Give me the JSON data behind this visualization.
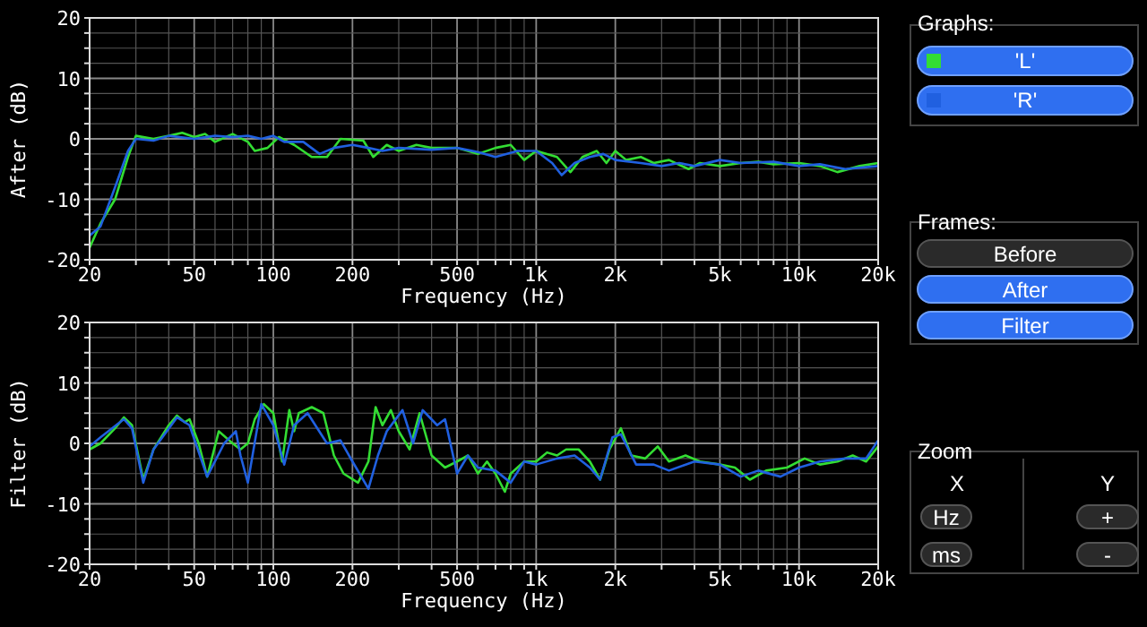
{
  "chart_data": [
    {
      "type": "line",
      "ylabel": "After (dB)",
      "xlabel": "Frequency (Hz)",
      "log": "x",
      "grid": true,
      "legend": "right",
      "legend_title": "Graphs:",
      "xlim": [
        20,
        20000
      ],
      "ylim": [
        -20,
        20
      ],
      "xticks": [
        20,
        {
          "value": 30,
          "label": null
        },
        {
          "value": 40,
          "label": null
        },
        50,
        {
          "value": 60,
          "label": null
        },
        {
          "value": 70,
          "label": null
        },
        {
          "value": 80,
          "label": null
        },
        {
          "value": 90,
          "label": null
        },
        100,
        200,
        {
          "value": 300,
          "label": null
        },
        {
          "value": 400,
          "label": null
        },
        500,
        {
          "value": 600,
          "label": null
        },
        {
          "value": 700,
          "label": null
        },
        {
          "value": 800,
          "label": null
        },
        {
          "value": 900,
          "label": null
        },
        {
          "value": 1000,
          "label": "1k"
        },
        {
          "value": 2000,
          "label": "2k"
        },
        {
          "value": 3000,
          "label": null
        },
        {
          "value": 4000,
          "label": null
        },
        {
          "value": 5000,
          "label": "5k"
        },
        {
          "value": 6000,
          "label": null
        },
        {
          "value": 7000,
          "label": null
        },
        {
          "value": 8000,
          "label": null
        },
        {
          "value": 9000,
          "label": null
        },
        {
          "value": 10000,
          "label": "10k"
        },
        {
          "value": 20000,
          "label": "20k"
        }
      ],
      "yticks": [
        -20,
        {
          "value": -17.5,
          "label": null
        },
        {
          "value": -15,
          "label": null
        },
        {
          "value": -12.5,
          "label": null
        },
        -10,
        {
          "value": -7.5,
          "label": null
        },
        {
          "value": -5,
          "label": null
        },
        {
          "value": -2.5,
          "label": null
        },
        0,
        {
          "value": 2.5,
          "label": null
        },
        {
          "value": 5,
          "label": null
        },
        {
          "value": 7.5,
          "label": null
        },
        10,
        {
          "value": 12.5,
          "label": null
        },
        {
          "value": 15,
          "label": null
        },
        {
          "value": 17.5,
          "label": null
        },
        20
      ],
      "series": [
        {
          "name": "'L'",
          "color": "#33dd33",
          "x": [
            20,
            22,
            25,
            28,
            30,
            35,
            40,
            45,
            50,
            55,
            60,
            70,
            80,
            85,
            95,
            105,
            120,
            140,
            160,
            180,
            220,
            240,
            270,
            300,
            350,
            400,
            500,
            600,
            700,
            800,
            900,
            1000,
            1200,
            1350,
            1500,
            1700,
            1850,
            2000,
            2200,
            2500,
            2800,
            3200,
            3800,
            4200,
            5000,
            6000,
            7000,
            8000,
            10000,
            12000,
            14000,
            17000,
            20000
          ],
          "values": [
            -18,
            -14,
            -10,
            -3,
            0.5,
            0,
            0.5,
            1,
            0.3,
            0.8,
            -0.5,
            0.8,
            -0.5,
            -2,
            -1.5,
            0.3,
            -1,
            -3,
            -3,
            0,
            -0.3,
            -3,
            -1,
            -2,
            -1,
            -1.5,
            -1.5,
            -2.5,
            -1.5,
            -1,
            -3.5,
            -2,
            -3,
            -5.5,
            -3,
            -2,
            -4,
            -2,
            -3.5,
            -3,
            -4,
            -3.5,
            -5,
            -4,
            -4.5,
            -4,
            -3.8,
            -4.2,
            -4,
            -4.5,
            -5.5,
            -4.5,
            -4
          ]
        },
        {
          "name": "'R'",
          "color": "#2060e0",
          "x": [
            20,
            22,
            25,
            28,
            30,
            35,
            40,
            50,
            60,
            70,
            80,
            90,
            100,
            110,
            130,
            150,
            170,
            200,
            230,
            260,
            300,
            400,
            500,
            600,
            700,
            850,
            1000,
            1150,
            1250,
            1400,
            1600,
            1800,
            2000,
            2500,
            3000,
            3500,
            4000,
            5000,
            6000,
            8000,
            10000,
            12000,
            15000,
            20000
          ],
          "values": [
            -16,
            -14.5,
            -8,
            -2,
            0,
            -0.3,
            0.5,
            0,
            0.5,
            0.3,
            0.5,
            0,
            0.5,
            -0.5,
            -0.5,
            -2.5,
            -1.5,
            -1,
            -1.5,
            -2,
            -1.5,
            -1.8,
            -1.5,
            -2.2,
            -3,
            -2,
            -2,
            -4,
            -6,
            -4,
            -3,
            -2.5,
            -3.5,
            -4,
            -4.5,
            -4,
            -4.5,
            -3.5,
            -4,
            -3.8,
            -4.5,
            -4.2,
            -5,
            -4.5
          ]
        }
      ]
    },
    {
      "type": "line",
      "ylabel": "Filter (dB)",
      "xlabel": "Frequency (Hz)",
      "log": "x",
      "grid": true,
      "xlim": [
        20,
        20000
      ],
      "ylim": [
        -20,
        20
      ],
      "xticks": [
        20,
        {
          "value": 30,
          "label": null
        },
        {
          "value": 40,
          "label": null
        },
        50,
        {
          "value": 60,
          "label": null
        },
        {
          "value": 70,
          "label": null
        },
        {
          "value": 80,
          "label": null
        },
        {
          "value": 90,
          "label": null
        },
        100,
        200,
        {
          "value": 300,
          "label": null
        },
        {
          "value": 400,
          "label": null
        },
        500,
        {
          "value": 600,
          "label": null
        },
        {
          "value": 700,
          "label": null
        },
        {
          "value": 800,
          "label": null
        },
        {
          "value": 900,
          "label": null
        },
        {
          "value": 1000,
          "label": "1k"
        },
        {
          "value": 2000,
          "label": "2k"
        },
        {
          "value": 3000,
          "label": null
        },
        {
          "value": 4000,
          "label": null
        },
        {
          "value": 5000,
          "label": "5k"
        },
        {
          "value": 6000,
          "label": null
        },
        {
          "value": 7000,
          "label": null
        },
        {
          "value": 8000,
          "label": null
        },
        {
          "value": 9000,
          "label": null
        },
        {
          "value": 10000,
          "label": "10k"
        },
        {
          "value": 20000,
          "label": "20k"
        }
      ],
      "yticks": [
        -20,
        {
          "value": -17.5,
          "label": null
        },
        {
          "value": -15,
          "label": null
        },
        {
          "value": -12.5,
          "label": null
        },
        -10,
        {
          "value": -7.5,
          "label": null
        },
        {
          "value": -5,
          "label": null
        },
        {
          "value": -2.5,
          "label": null
        },
        0,
        {
          "value": 2.5,
          "label": null
        },
        {
          "value": 5,
          "label": null
        },
        {
          "value": 7.5,
          "label": null
        },
        10,
        {
          "value": 12.5,
          "label": null
        },
        {
          "value": 15,
          "label": null
        },
        {
          "value": 17.5,
          "label": null
        },
        20
      ],
      "series": [
        {
          "color": "#33dd33",
          "x": [
            20,
            22,
            25,
            27,
            29,
            32,
            35,
            40,
            43,
            46,
            48,
            52,
            56,
            62,
            70,
            75,
            80,
            85,
            92,
            100,
            108,
            115,
            120,
            125,
            140,
            155,
            170,
            185,
            210,
            230,
            245,
            260,
            280,
            300,
            330,
            360,
            400,
            450,
            500,
            550,
            600,
            650,
            700,
            760,
            800,
            900,
            1000,
            1100,
            1200,
            1300,
            1450,
            1600,
            1750,
            1900,
            2100,
            2300,
            2600,
            2900,
            3200,
            3700,
            4200,
            5000,
            5700,
            6500,
            7500,
            9000,
            10500,
            12000,
            14000,
            16000,
            18000,
            20000
          ],
          "values": [
            -1,
            0,
            2.5,
            4.3,
            3,
            -6,
            -1,
            3,
            4.6,
            3.5,
            4,
            0,
            -5.5,
            2,
            0,
            -1,
            0,
            4,
            6.5,
            5,
            -3,
            5.5,
            2,
            5,
            6,
            5,
            -2,
            -5,
            -6.5,
            -3,
            6,
            3,
            5.5,
            2,
            -1,
            5,
            -2,
            -4,
            -3,
            -2,
            -5,
            -3,
            -5,
            -8,
            -5,
            -3,
            -3,
            -1.5,
            -2,
            -1,
            -1,
            -3,
            -6,
            -1,
            2.5,
            -2,
            -2.5,
            -0.5,
            -3,
            -2,
            -3,
            -3.5,
            -4,
            -6,
            -4.5,
            -4,
            -2.5,
            -3.5,
            -3,
            -2,
            -3,
            -0.5
          ]
        },
        {
          "color": "#2060e0",
          "x": [
            20,
            22,
            27,
            29,
            32,
            35,
            43,
            48,
            56,
            65,
            72,
            75,
            80,
            90,
            100,
            110,
            120,
            135,
            160,
            180,
            200,
            230,
            250,
            270,
            310,
            340,
            370,
            420,
            450,
            500,
            550,
            600,
            700,
            800,
            900,
            1000,
            1200,
            1400,
            1600,
            1750,
            1950,
            2100,
            2400,
            2800,
            3200,
            4000,
            5000,
            6000,
            7000,
            8500,
            10000,
            12000,
            15000,
            18000,
            20000
          ],
          "values": [
            -0.5,
            1,
            4,
            2.5,
            -6.5,
            -1,
            4.3,
            3,
            -5.5,
            0,
            2,
            -2,
            -6.5,
            6.5,
            3,
            -3.5,
            3,
            5,
            0,
            0.5,
            -3,
            -7.5,
            -2,
            2,
            5.5,
            0,
            5.5,
            3,
            4,
            -5,
            -2,
            -4,
            -4.5,
            -6.5,
            -3,
            -3.5,
            -2.5,
            -2,
            -4,
            -6,
            1,
            1.5,
            -3.5,
            -3.5,
            -4.5,
            -3,
            -3.5,
            -5.5,
            -4.5,
            -5.5,
            -4,
            -3,
            -2.5,
            -2.5,
            0.5
          ]
        }
      ]
    },
    {
      "type": "other",
      "annotations": [
        "Frames:",
        "Before",
        "After",
        "Filter",
        "Zoom",
        "X",
        "Y",
        "Hz",
        "ms",
        "+",
        "-"
      ]
    }
  ]
}
